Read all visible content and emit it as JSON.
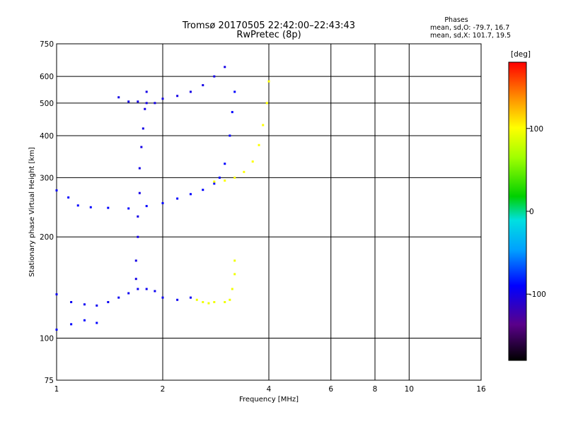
{
  "chart_data": {
    "type": "scatter",
    "title": "Tromsø 20170505 22:42:00–22:43:43",
    "subtitle": "RwPretec (8p)",
    "phase_info": {
      "title": "Phases",
      "line1": "mean, sd,O: -79.7, 16.7",
      "line2": "mean, sd,X: 101.7, 19.5"
    },
    "xlabel": "Frequency [MHz]",
    "ylabel": "Stationary phase Virtual Height [km]",
    "x_scale": "log",
    "y_scale": "log",
    "xlim": [
      1,
      16
    ],
    "ylim": [
      75,
      750
    ],
    "x_ticks": [
      1,
      2,
      4,
      6,
      8,
      10,
      16
    ],
    "x_tick_labels": [
      "1",
      "2",
      "4",
      "6",
      "8",
      "10",
      "16"
    ],
    "y_ticks": [
      75,
      100,
      200,
      300,
      400,
      500,
      600,
      750
    ],
    "y_tick_labels": [
      "75",
      "100",
      "200",
      "300",
      "400",
      "500",
      "600",
      "750"
    ],
    "grid": true,
    "colorbar": {
      "label": "[deg]",
      "range": [
        -180,
        180
      ],
      "ticks": [
        -100,
        0,
        100
      ],
      "tick_labels": [
        "-100",
        "0",
        "100"
      ]
    },
    "series": [
      {
        "trace": "o-mode-F-region",
        "phase_deg": -90,
        "points": [
          [
            1.0,
            275
          ],
          [
            1.08,
            262
          ],
          [
            1.15,
            248
          ],
          [
            1.25,
            245
          ],
          [
            1.4,
            244
          ],
          [
            1.6,
            243
          ],
          [
            1.8,
            247
          ],
          [
            2.0,
            252
          ],
          [
            2.2,
            260
          ],
          [
            2.4,
            268
          ],
          [
            2.6,
            276
          ],
          [
            2.8,
            288
          ],
          [
            2.9,
            300
          ],
          [
            3.0,
            330
          ],
          [
            3.1,
            400
          ],
          [
            3.15,
            470
          ],
          [
            3.2,
            540
          ]
        ]
      },
      {
        "trace": "x-mode-F-region",
        "phase_deg": 100,
        "points": [
          [
            2.8,
            292
          ],
          [
            3.0,
            294
          ],
          [
            3.2,
            300
          ],
          [
            3.4,
            312
          ],
          [
            3.6,
            335
          ],
          [
            3.75,
            375
          ],
          [
            3.85,
            430
          ],
          [
            3.95,
            500
          ],
          [
            4.0,
            580
          ]
        ]
      },
      {
        "trace": "o-mode-E-region",
        "phase_deg": -95,
        "points": [
          [
            1.0,
            135
          ],
          [
            1.1,
            128
          ],
          [
            1.2,
            126
          ],
          [
            1.3,
            125
          ],
          [
            1.4,
            128
          ],
          [
            1.5,
            132
          ],
          [
            1.6,
            136
          ],
          [
            1.7,
            140
          ],
          [
            1.8,
            140
          ],
          [
            1.9,
            138
          ],
          [
            2.0,
            132
          ],
          [
            2.2,
            130
          ],
          [
            2.4,
            132
          ]
        ]
      },
      {
        "trace": "o-mode-low-E",
        "phase_deg": -90,
        "points": [
          [
            1.0,
            106
          ],
          [
            1.1,
            110
          ],
          [
            1.2,
            113
          ],
          [
            1.3,
            111
          ]
        ]
      },
      {
        "trace": "o-mode-multiple-hop",
        "phase_deg": -100,
        "points": [
          [
            1.5,
            520
          ],
          [
            1.6,
            505
          ],
          [
            1.7,
            505
          ],
          [
            1.8,
            500
          ],
          [
            1.9,
            500
          ],
          [
            2.0,
            515
          ],
          [
            2.2,
            525
          ],
          [
            2.4,
            540
          ],
          [
            2.6,
            565
          ],
          [
            2.8,
            600
          ],
          [
            3.0,
            640
          ]
        ]
      },
      {
        "trace": "vertical-spread-1.7MHz",
        "phase_deg": -100,
        "points": [
          [
            1.68,
            150
          ],
          [
            1.68,
            170
          ],
          [
            1.7,
            200
          ],
          [
            1.7,
            230
          ],
          [
            1.72,
            270
          ],
          [
            1.72,
            320
          ],
          [
            1.74,
            370
          ],
          [
            1.76,
            420
          ],
          [
            1.78,
            480
          ],
          [
            1.8,
            540
          ]
        ]
      },
      {
        "trace": "x-mode-E-region",
        "phase_deg": 95,
        "points": [
          [
            2.5,
            130
          ],
          [
            2.6,
            128
          ],
          [
            2.7,
            127
          ],
          [
            2.8,
            128
          ],
          [
            3.0,
            128
          ],
          [
            3.1,
            130
          ],
          [
            3.15,
            140
          ],
          [
            3.2,
            155
          ],
          [
            3.2,
            170
          ]
        ]
      }
    ]
  }
}
